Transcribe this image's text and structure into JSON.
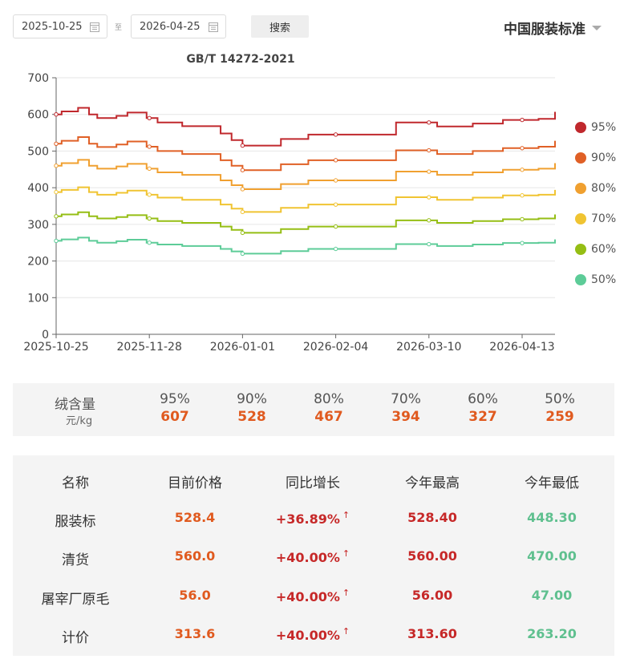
{
  "filter": {
    "start_date": "2025-10-25",
    "end_date": "2026-04-25",
    "separator": "至",
    "search_label": "搜索",
    "standard": "中国服装标准"
  },
  "chart_data": {
    "type": "line",
    "title": "GB/T 14272-2021",
    "x_labels": [
      "2025-10-25",
      "2025-11-28",
      "2026-01-01",
      "2026-02-04",
      "2026-03-10",
      "2026-04-13"
    ],
    "x_range": [
      "2025-10-25",
      "2026-04-25"
    ],
    "ylim": [
      0,
      700
    ],
    "y_ticks": [
      0,
      100,
      200,
      300,
      400,
      500,
      600,
      700
    ],
    "grid": true,
    "legend_position": "right",
    "step": true,
    "series": [
      {
        "name": "95%",
        "color": "#c0282d",
        "points": [
          [
            "2025-10-25",
            600
          ],
          [
            "2025-10-27",
            608
          ],
          [
            "2025-11-02",
            618
          ],
          [
            "2025-11-06",
            600
          ],
          [
            "2025-11-09",
            590
          ],
          [
            "2025-11-16",
            596
          ],
          [
            "2025-11-20",
            605
          ],
          [
            "2025-11-27",
            590
          ],
          [
            "2025-12-01",
            578
          ],
          [
            "2025-12-10",
            568
          ],
          [
            "2025-12-24",
            548
          ],
          [
            "2025-12-28",
            530
          ],
          [
            "2026-01-01",
            515
          ],
          [
            "2026-01-15",
            533
          ],
          [
            "2026-01-25",
            545
          ],
          [
            "2026-02-17",
            545
          ],
          [
            "2026-02-26",
            578
          ],
          [
            "2026-03-13",
            567
          ],
          [
            "2026-03-26",
            575
          ],
          [
            "2026-04-06",
            585
          ],
          [
            "2026-04-19",
            588
          ],
          [
            "2026-04-25",
            607
          ]
        ]
      },
      {
        "name": "90%",
        "color": "#e06026",
        "points": [
          [
            "2025-10-25",
            520
          ],
          [
            "2025-10-27",
            528
          ],
          [
            "2025-11-02",
            538
          ],
          [
            "2025-11-06",
            520
          ],
          [
            "2025-11-09",
            511
          ],
          [
            "2025-11-16",
            518
          ],
          [
            "2025-11-20",
            526
          ],
          [
            "2025-11-27",
            512
          ],
          [
            "2025-12-01",
            500
          ],
          [
            "2025-12-10",
            492
          ],
          [
            "2025-12-24",
            475
          ],
          [
            "2025-12-28",
            460
          ],
          [
            "2026-01-01",
            448
          ],
          [
            "2026-01-15",
            464
          ],
          [
            "2026-01-25",
            475
          ],
          [
            "2026-02-17",
            475
          ],
          [
            "2026-02-26",
            502
          ],
          [
            "2026-03-13",
            492
          ],
          [
            "2026-03-26",
            500
          ],
          [
            "2026-04-06",
            508
          ],
          [
            "2026-04-19",
            512
          ],
          [
            "2026-04-25",
            528
          ]
        ]
      },
      {
        "name": "80%",
        "color": "#f0a030",
        "points": [
          [
            "2025-10-25",
            460
          ],
          [
            "2025-10-27",
            467
          ],
          [
            "2025-11-02",
            476
          ],
          [
            "2025-11-06",
            460
          ],
          [
            "2025-11-09",
            452
          ],
          [
            "2025-11-16",
            458
          ],
          [
            "2025-11-20",
            465
          ],
          [
            "2025-11-27",
            452
          ],
          [
            "2025-12-01",
            442
          ],
          [
            "2025-12-10",
            435
          ],
          [
            "2025-12-24",
            420
          ],
          [
            "2025-12-28",
            407
          ],
          [
            "2026-01-01",
            396
          ],
          [
            "2026-01-15",
            410
          ],
          [
            "2026-01-25",
            420
          ],
          [
            "2026-02-17",
            420
          ],
          [
            "2026-02-26",
            444
          ],
          [
            "2026-03-13",
            435
          ],
          [
            "2026-03-26",
            442
          ],
          [
            "2026-04-06",
            449
          ],
          [
            "2026-04-19",
            452
          ],
          [
            "2026-04-25",
            467
          ]
        ]
      },
      {
        "name": "70%",
        "color": "#f0c432",
        "points": [
          [
            "2025-10-25",
            388
          ],
          [
            "2025-10-27",
            394
          ],
          [
            "2025-11-02",
            401
          ],
          [
            "2025-11-06",
            388
          ],
          [
            "2025-11-09",
            381
          ],
          [
            "2025-11-16",
            386
          ],
          [
            "2025-11-20",
            392
          ],
          [
            "2025-11-27",
            381
          ],
          [
            "2025-12-01",
            373
          ],
          [
            "2025-12-10",
            367
          ],
          [
            "2025-12-24",
            354
          ],
          [
            "2025-12-28",
            343
          ],
          [
            "2026-01-01",
            334
          ],
          [
            "2026-01-15",
            345
          ],
          [
            "2026-01-25",
            354
          ],
          [
            "2026-02-17",
            354
          ],
          [
            "2026-02-26",
            374
          ],
          [
            "2026-03-13",
            367
          ],
          [
            "2026-03-26",
            373
          ],
          [
            "2026-04-06",
            379
          ],
          [
            "2026-04-19",
            381
          ],
          [
            "2026-04-25",
            394
          ]
        ]
      },
      {
        "name": "60%",
        "color": "#95be14",
        "points": [
          [
            "2025-10-25",
            322
          ],
          [
            "2025-10-27",
            327
          ],
          [
            "2025-11-02",
            333
          ],
          [
            "2025-11-06",
            322
          ],
          [
            "2025-11-09",
            316
          ],
          [
            "2025-11-16",
            320
          ],
          [
            "2025-11-20",
            325
          ],
          [
            "2025-11-27",
            316
          ],
          [
            "2025-12-01",
            309
          ],
          [
            "2025-12-10",
            304
          ],
          [
            "2025-12-24",
            294
          ],
          [
            "2025-12-28",
            285
          ],
          [
            "2026-01-01",
            277
          ],
          [
            "2026-01-15",
            287
          ],
          [
            "2026-01-25",
            294
          ],
          [
            "2026-02-17",
            294
          ],
          [
            "2026-02-26",
            311
          ],
          [
            "2026-03-13",
            304
          ],
          [
            "2026-03-26",
            309
          ],
          [
            "2026-04-06",
            314
          ],
          [
            "2026-04-19",
            316
          ],
          [
            "2026-04-25",
            327
          ]
        ]
      },
      {
        "name": "50%",
        "color": "#5dcc98",
        "points": [
          [
            "2025-10-25",
            255
          ],
          [
            "2025-10-27",
            259
          ],
          [
            "2025-11-02",
            264
          ],
          [
            "2025-11-06",
            255
          ],
          [
            "2025-11-09",
            250
          ],
          [
            "2025-11-16",
            254
          ],
          [
            "2025-11-20",
            258
          ],
          [
            "2025-11-27",
            250
          ],
          [
            "2025-12-01",
            245
          ],
          [
            "2025-12-10",
            241
          ],
          [
            "2025-12-24",
            233
          ],
          [
            "2025-12-28",
            226
          ],
          [
            "2026-01-01",
            220
          ],
          [
            "2026-01-15",
            227
          ],
          [
            "2026-01-25",
            233
          ],
          [
            "2026-02-17",
            233
          ],
          [
            "2026-02-26",
            246
          ],
          [
            "2026-03-13",
            241
          ],
          [
            "2026-03-26",
            245
          ],
          [
            "2026-04-06",
            249
          ],
          [
            "2026-04-19",
            250
          ],
          [
            "2026-04-25",
            259
          ]
        ]
      }
    ]
  },
  "summary": {
    "label": "绒含量",
    "unit": "元/kg",
    "items": [
      {
        "pct": "95%",
        "value": "607"
      },
      {
        "pct": "90%",
        "value": "528"
      },
      {
        "pct": "80%",
        "value": "467"
      },
      {
        "pct": "70%",
        "value": "394"
      },
      {
        "pct": "60%",
        "value": "327"
      },
      {
        "pct": "50%",
        "value": "259"
      }
    ]
  },
  "table": {
    "headers": [
      "名称",
      "目前价格",
      "同比增长",
      "今年最高",
      "今年最低"
    ],
    "rows": [
      {
        "name": "服装标",
        "current": "528.4",
        "change": "+36.89%",
        "high": "528.40",
        "low": "448.30"
      },
      {
        "name": "清货",
        "current": "560.0",
        "change": "+40.00%",
        "high": "560.00",
        "low": "470.00"
      },
      {
        "name": "屠宰厂原毛",
        "current": "56.0",
        "change": "+40.00%",
        "high": "56.00",
        "low": "47.00"
      },
      {
        "name": "计价",
        "current": "313.6",
        "change": "+40.00%",
        "high": "313.60",
        "low": "263.20"
      }
    ],
    "arrow": "↑"
  }
}
